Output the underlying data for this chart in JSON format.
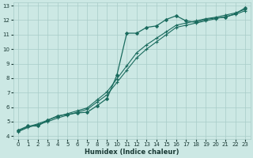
{
  "xlabel": "Humidex (Indice chaleur)",
  "ylabel": "",
  "bg_color": "#cce8e4",
  "grid_color": "#a8ccc8",
  "line_color": "#1a6b5e",
  "xlim": [
    -0.5,
    23.5
  ],
  "ylim": [
    3.8,
    13.2
  ],
  "xticks": [
    0,
    1,
    2,
    3,
    4,
    5,
    6,
    7,
    8,
    9,
    10,
    11,
    12,
    13,
    14,
    15,
    16,
    17,
    18,
    19,
    20,
    21,
    22,
    23
  ],
  "yticks": [
    4,
    5,
    6,
    7,
    8,
    9,
    10,
    11,
    12,
    13
  ],
  "series": [
    {
      "x": [
        0,
        1,
        2,
        3,
        4,
        5,
        6,
        7,
        8,
        9,
        10,
        11,
        12,
        13,
        14,
        15,
        16,
        17,
        18,
        19,
        20,
        21,
        22,
        23
      ],
      "y": [
        4.4,
        4.7,
        4.7,
        5.1,
        5.4,
        5.5,
        5.6,
        5.65,
        6.1,
        6.6,
        8.2,
        11.1,
        11.1,
        11.5,
        11.6,
        12.05,
        12.3,
        11.95,
        11.85,
        12.05,
        12.15,
        12.2,
        12.45,
        12.85
      ],
      "marker": "D",
      "markersize": 2.0,
      "lw": 0.9
    },
    {
      "x": [
        0,
        1,
        2,
        3,
        4,
        5,
        6,
        7,
        8,
        9,
        10,
        11,
        12,
        13,
        14,
        15,
        16,
        17,
        18,
        19,
        20,
        21,
        22,
        23
      ],
      "y": [
        4.35,
        4.65,
        4.85,
        5.1,
        5.35,
        5.55,
        5.75,
        5.95,
        6.5,
        7.05,
        7.95,
        8.85,
        9.75,
        10.3,
        10.75,
        11.2,
        11.65,
        11.8,
        11.95,
        12.1,
        12.2,
        12.35,
        12.5,
        12.75
      ],
      "marker": "+",
      "markersize": 3.5,
      "lw": 0.8
    },
    {
      "x": [
        0,
        1,
        2,
        3,
        4,
        5,
        6,
        7,
        8,
        9,
        10,
        11,
        12,
        13,
        14,
        15,
        16,
        17,
        18,
        19,
        20,
        21,
        22,
        23
      ],
      "y": [
        4.3,
        4.6,
        4.8,
        5.0,
        5.25,
        5.45,
        5.65,
        5.85,
        6.35,
        6.85,
        7.7,
        8.55,
        9.4,
        10.0,
        10.5,
        11.0,
        11.5,
        11.65,
        11.8,
        11.95,
        12.1,
        12.25,
        12.4,
        12.65
      ],
      "marker": "+",
      "markersize": 3.5,
      "lw": 0.8
    }
  ]
}
